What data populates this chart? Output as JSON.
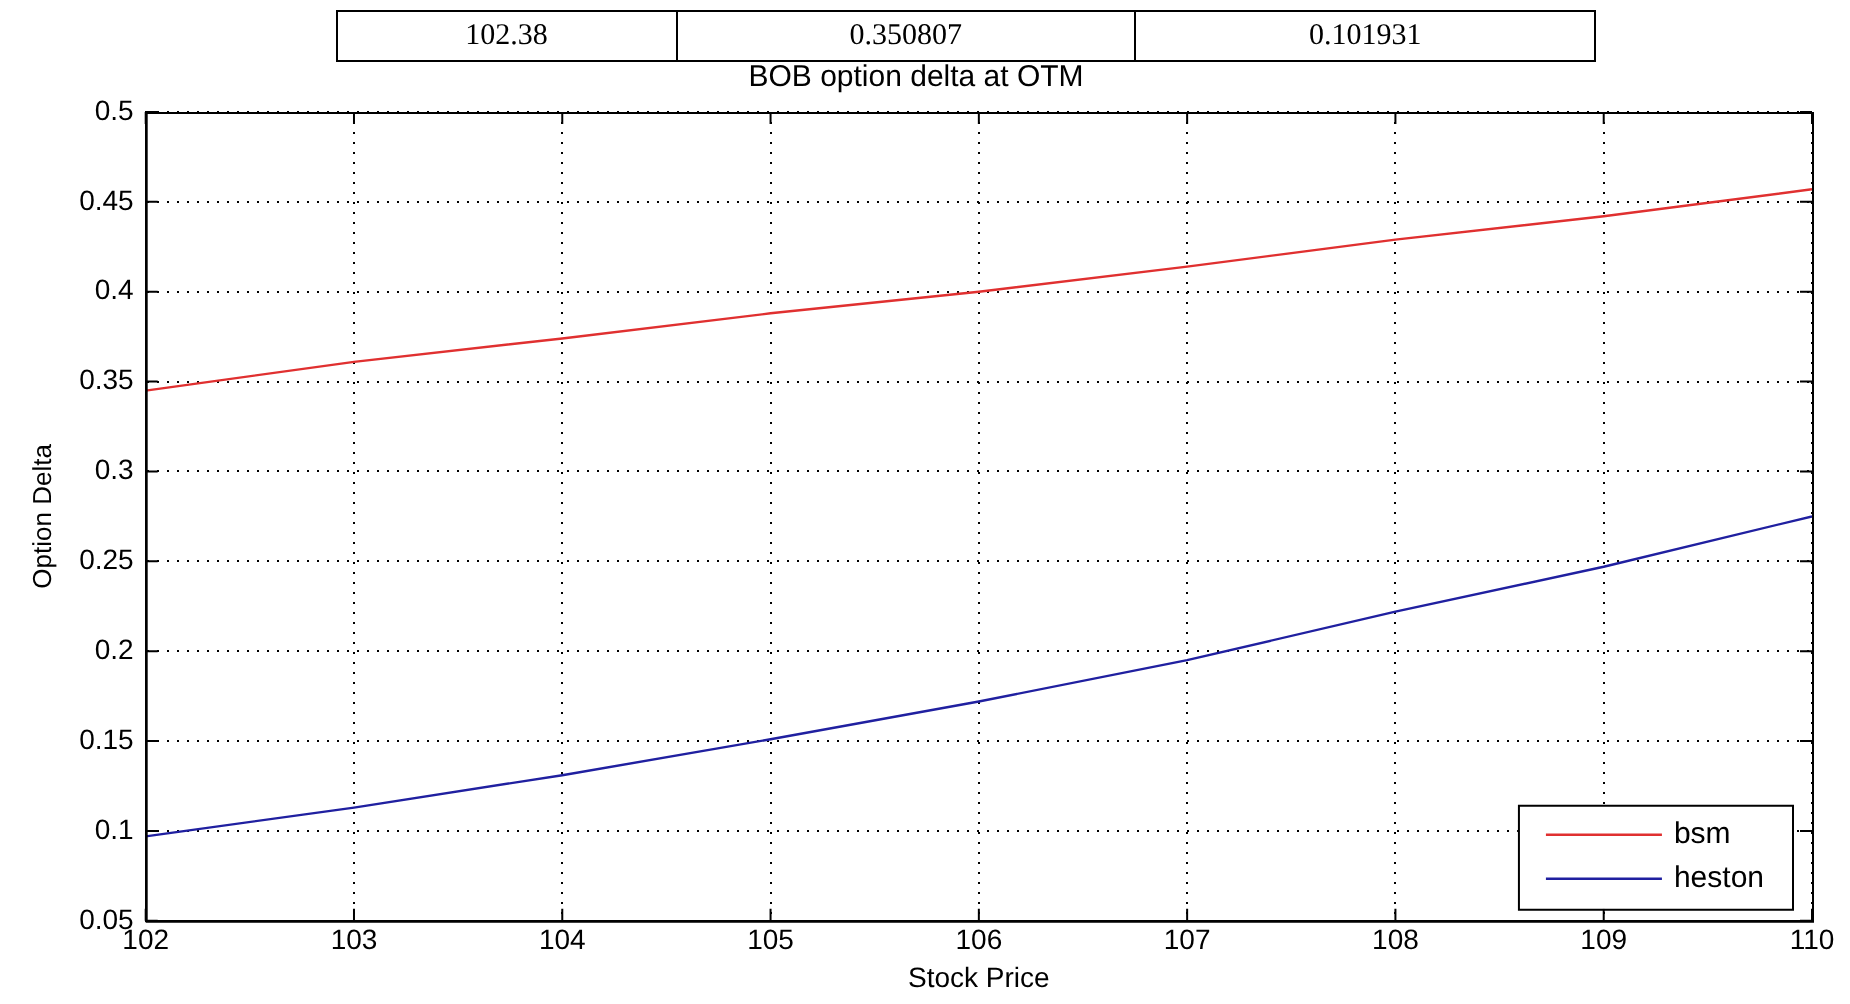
{
  "chart_data": {
    "type": "line",
    "title": "BOB option delta at OTM",
    "xlabel": "Stock Price",
    "ylabel": "Option Delta",
    "annotations": [
      "102.38",
      "0.350807",
      "0.101931"
    ],
    "x": [
      102,
      103,
      104,
      105,
      106,
      107,
      108,
      109,
      110
    ],
    "series": [
      {
        "name": "bsm",
        "color": "#e03030",
        "values": [
          0.345,
          0.361,
          0.374,
          0.388,
          0.4,
          0.414,
          0.429,
          0.442,
          0.457
        ]
      },
      {
        "name": "heston",
        "color": "#2020a0",
        "values": [
          0.097,
          0.113,
          0.131,
          0.151,
          0.172,
          0.195,
          0.222,
          0.247,
          0.275
        ]
      }
    ],
    "xlim": [
      102,
      110
    ],
    "xticks": [
      102,
      103,
      104,
      105,
      106,
      107,
      108,
      109,
      110
    ],
    "ylim": [
      0.05,
      0.5
    ],
    "yticks": [
      0.05,
      0.1,
      0.15,
      0.2,
      0.25,
      0.3,
      0.35,
      0.4,
      0.45,
      0.5
    ],
    "grid": true,
    "legend": "bottom right",
    "marker": "none",
    "line_style": "solid"
  }
}
